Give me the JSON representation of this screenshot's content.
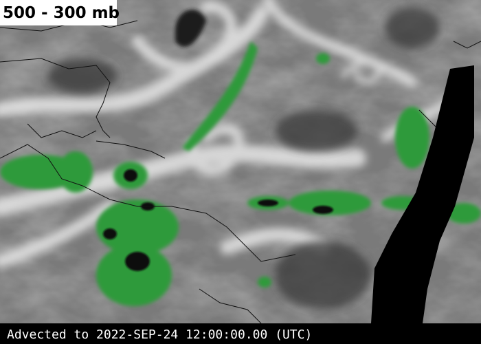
{
  "header": {
    "title": "500 - 300 mb"
  },
  "footer": {
    "caption": "Advected to 2022-SEP-24 12:00:00.00 (UTC)"
  }
}
